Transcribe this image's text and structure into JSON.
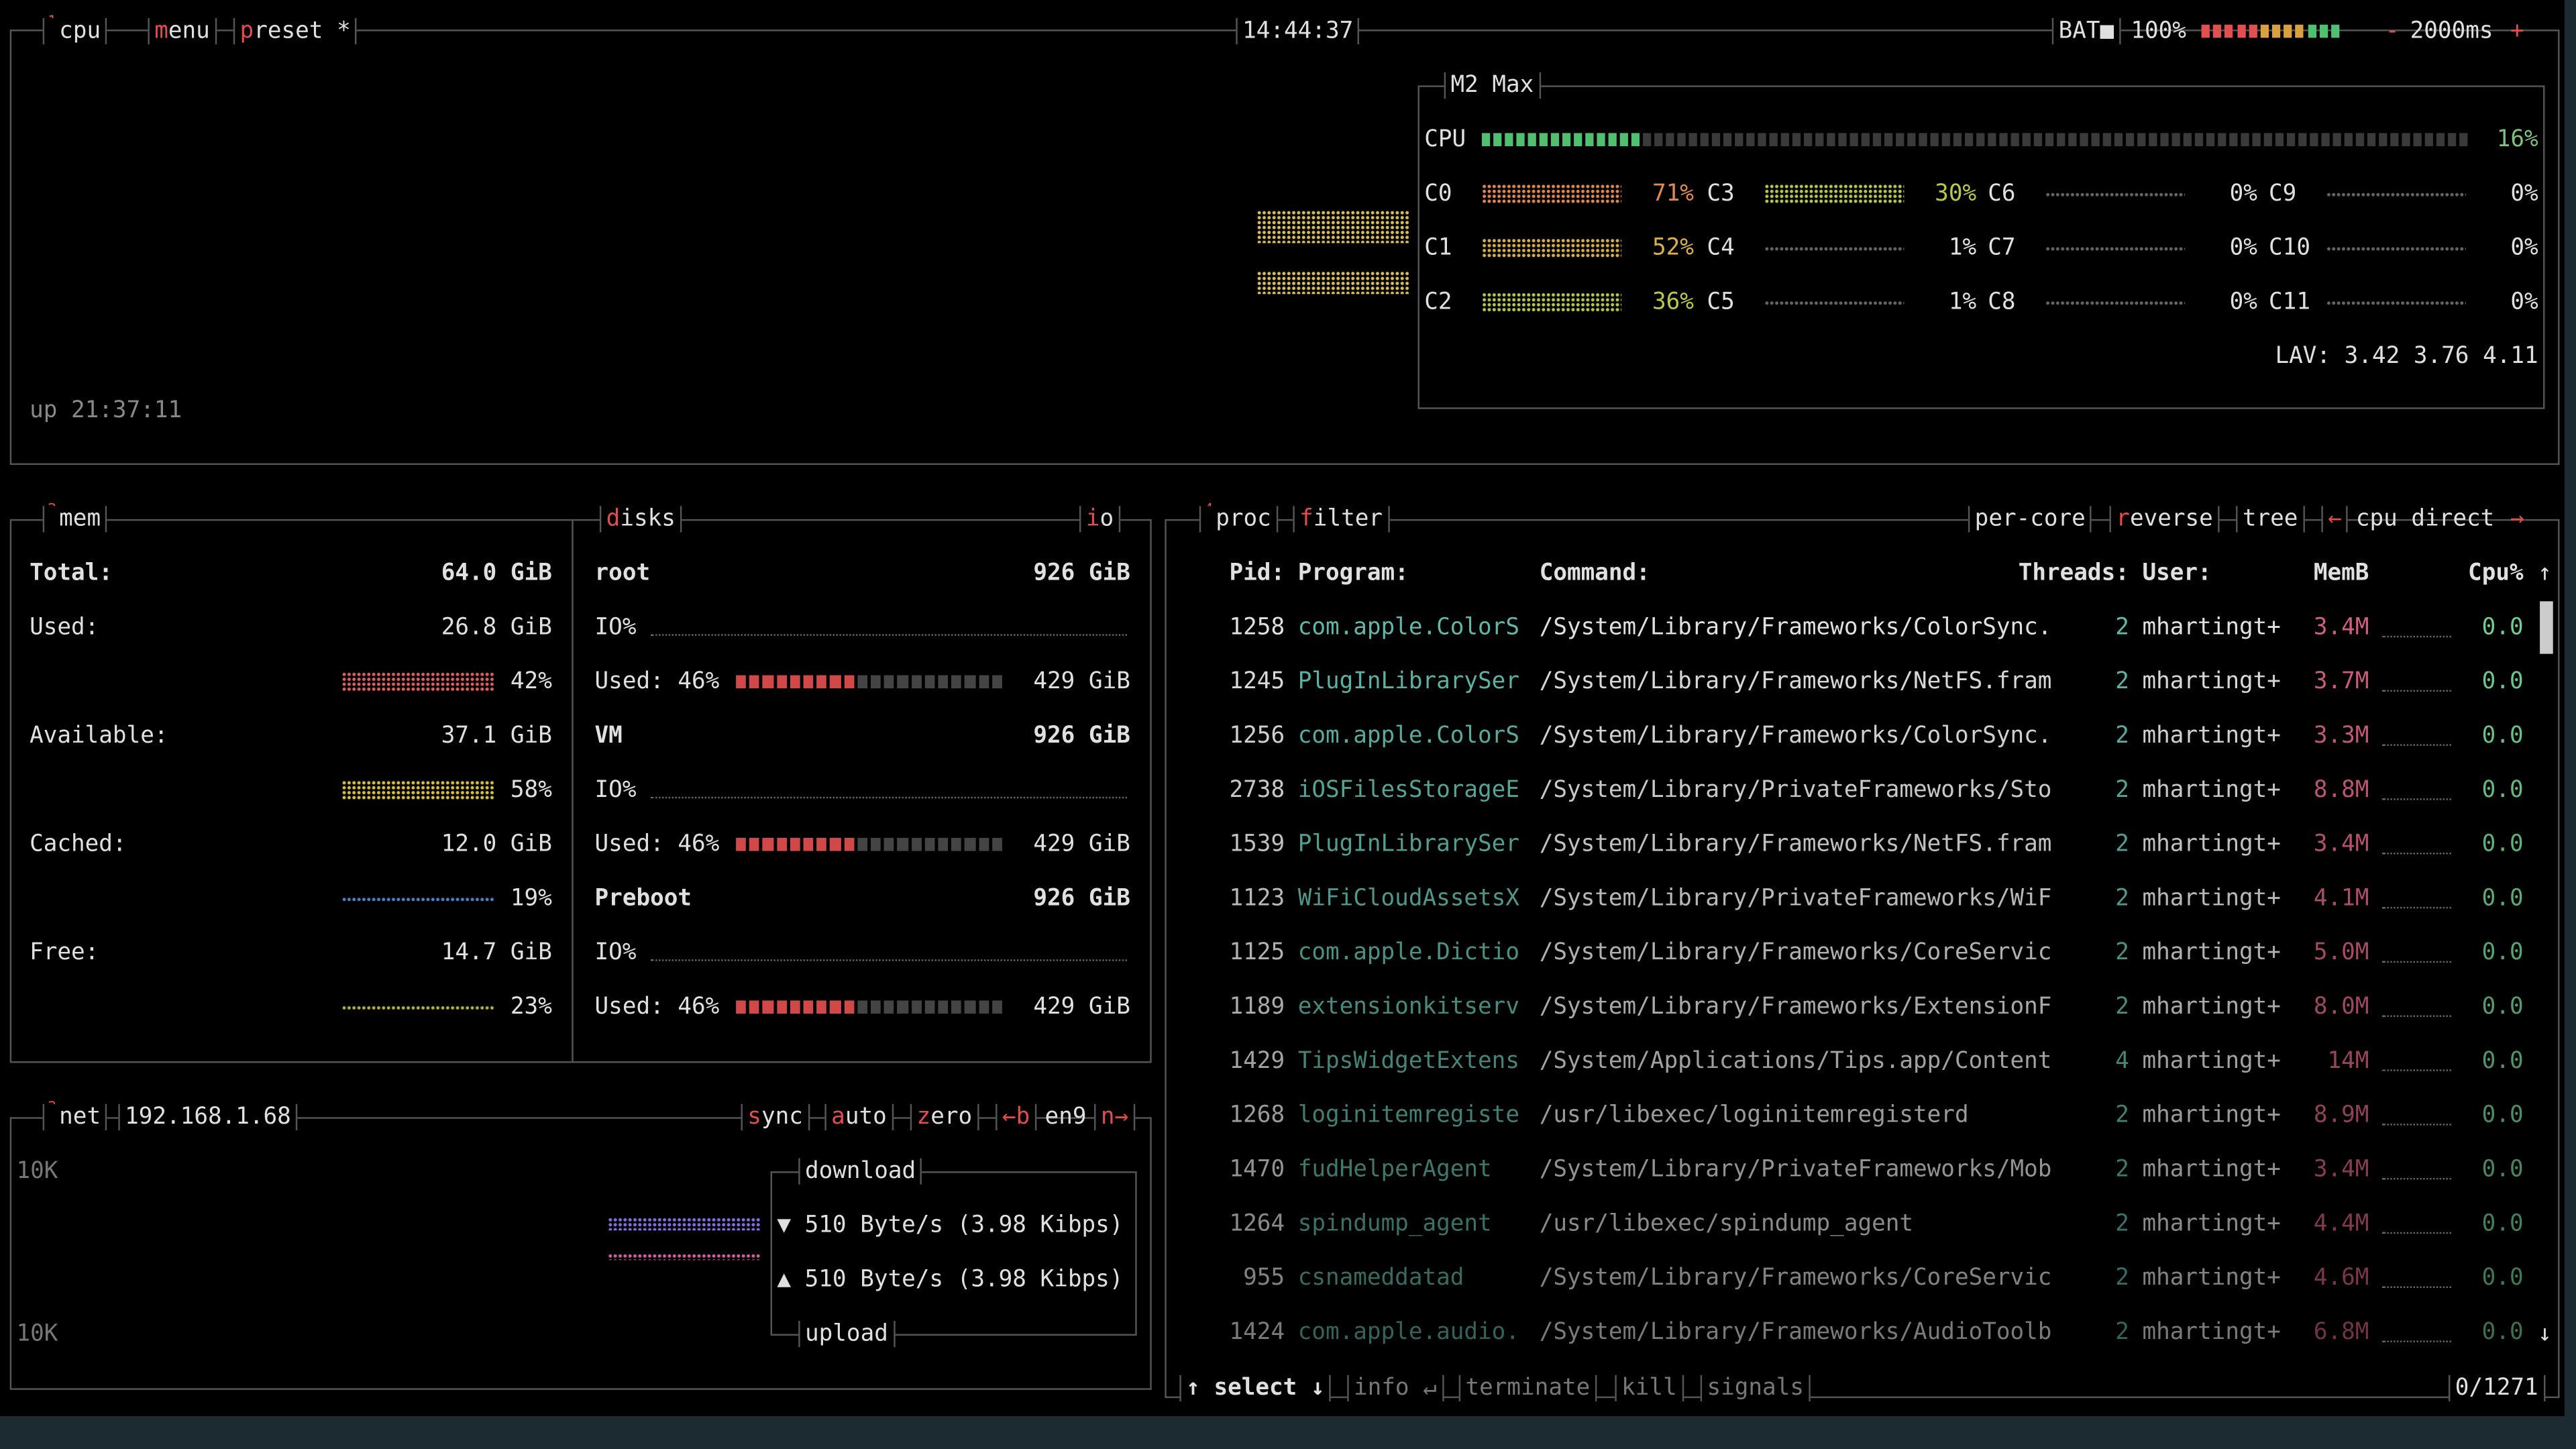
{
  "header": {
    "cpu_num": "1",
    "cpu_tab": "cpu",
    "menu": "menu",
    "preset": "preset *",
    "clock": "14:44:37",
    "battery_label": "BAT■",
    "battery_pct": "100%",
    "interval_minus": "-",
    "interval": "2000ms",
    "interval_plus": "+"
  },
  "cpu": {
    "model": "M2 Max",
    "total_label": "CPU",
    "total_pct": "16%",
    "cores": [
      {
        "name": "C0",
        "pct": "71%"
      },
      {
        "name": "C1",
        "pct": "52%"
      },
      {
        "name": "C2",
        "pct": "36%"
      },
      {
        "name": "C3",
        "pct": "30%"
      },
      {
        "name": "C4",
        "pct": "1%"
      },
      {
        "name": "C5",
        "pct": "1%"
      },
      {
        "name": "C6",
        "pct": "0%"
      },
      {
        "name": "C7",
        "pct": "0%"
      },
      {
        "name": "C8",
        "pct": "0%"
      },
      {
        "name": "C9",
        "pct": "0%"
      },
      {
        "name": "C10",
        "pct": "0%"
      },
      {
        "name": "C11",
        "pct": "0%"
      }
    ],
    "load_avg": "LAV: 3.42 3.76 4.11",
    "uptime": "up 21:37:11"
  },
  "mem": {
    "num": "2",
    "title": "mem",
    "rows": [
      {
        "label": "Total:",
        "value": "64.0 GiB"
      },
      {
        "label": "Used:",
        "value": "26.8 GiB",
        "pct": "42%"
      },
      {
        "label": "Available:",
        "value": "37.1 GiB",
        "pct": "58%"
      },
      {
        "label": "Cached:",
        "value": "12.0 GiB",
        "pct": "19%"
      },
      {
        "label": "Free:",
        "value": "14.7 GiB",
        "pct": "23%"
      }
    ]
  },
  "disks": {
    "title": "disks",
    "io": "io",
    "items": [
      {
        "name": "root",
        "size": "926 GiB",
        "io": "IO%",
        "used": "Used: 46%",
        "used_size": "429 GiB"
      },
      {
        "name": "VM",
        "size": "926 GiB",
        "io": "IO%",
        "used": "Used: 46%",
        "used_size": "429 GiB"
      },
      {
        "name": "Preboot",
        "size": "926 GiB",
        "io": "IO%",
        "used": "Used: 46%",
        "used_size": "429 GiB"
      }
    ]
  },
  "net": {
    "num": "3",
    "title": "net",
    "ip": "192.168.1.68",
    "buttons": [
      "sync",
      "auto",
      "zero"
    ],
    "iface_prev": "←b",
    "iface": "en9",
    "iface_next": "n→",
    "scale_top": "10K",
    "scale_bottom": "10K",
    "download_label": "download",
    "download": "▼ 510 Byte/s (3.98 Kibps)",
    "upload": "▲ 510 Byte/s (3.98 Kibps)",
    "upload_label": "upload"
  },
  "proc": {
    "num": "4",
    "title": "proc",
    "filter": "filter",
    "options": [
      "per-core",
      "reverse",
      "tree"
    ],
    "sort_prev": "←",
    "sort": "cpu direct",
    "sort_next": "→",
    "columns": [
      "Pid:",
      "Program:",
      "Command:",
      "Threads:",
      "User:",
      "MemB",
      "Cpu%"
    ],
    "sort_arrow": "↑",
    "rows": [
      [
        "1258",
        "com.apple.ColorS",
        "/System/Library/Frameworks/ColorSync.",
        "2",
        "mhartingt+",
        "3.4M",
        "0.0"
      ],
      [
        "1245",
        "PlugInLibrarySer",
        "/System/Library/Frameworks/NetFS.fram",
        "2",
        "mhartingt+",
        "3.7M",
        "0.0"
      ],
      [
        "1256",
        "com.apple.ColorS",
        "/System/Library/Frameworks/ColorSync.",
        "2",
        "mhartingt+",
        "3.3M",
        "0.0"
      ],
      [
        "2738",
        "iOSFilesStorageE",
        "/System/Library/PrivateFrameworks/Sto",
        "2",
        "mhartingt+",
        "8.8M",
        "0.0"
      ],
      [
        "1539",
        "PlugInLibrarySer",
        "/System/Library/Frameworks/NetFS.fram",
        "2",
        "mhartingt+",
        "3.4M",
        "0.0"
      ],
      [
        "1123",
        "WiFiCloudAssetsX",
        "/System/Library/PrivateFrameworks/WiF",
        "2",
        "mhartingt+",
        "4.1M",
        "0.0"
      ],
      [
        "1125",
        "com.apple.Dictio",
        "/System/Library/Frameworks/CoreServic",
        "2",
        "mhartingt+",
        "5.0M",
        "0.0"
      ],
      [
        "1189",
        "extensionkitserv",
        "/System/Library/Frameworks/ExtensionF",
        "2",
        "mhartingt+",
        "8.0M",
        "0.0"
      ],
      [
        "1429",
        "TipsWidgetExtens",
        "/System/Applications/Tips.app/Content",
        "4",
        "mhartingt+",
        "14M",
        "0.0"
      ],
      [
        "1268",
        "loginitemregiste",
        "/usr/libexec/loginitemregisterd",
        "2",
        "mhartingt+",
        "8.9M",
        "0.0"
      ],
      [
        "1470",
        "fudHelperAgent",
        "/System/Library/PrivateFrameworks/Mob",
        "2",
        "mhartingt+",
        "3.4M",
        "0.0"
      ],
      [
        "1264",
        "spindump_agent",
        "/usr/libexec/spindump_agent",
        "2",
        "mhartingt+",
        "4.4M",
        "0.0"
      ],
      [
        "955",
        "csnameddatad",
        "/System/Library/Frameworks/CoreServic",
        "2",
        "mhartingt+",
        "4.6M",
        "0.0"
      ],
      [
        "1424",
        "com.apple.audio.",
        "/System/Library/Frameworks/AudioToolb",
        "2",
        "mhartingt+",
        "6.8M",
        "0.0"
      ]
    ],
    "scroll_down": "↓",
    "footer": {
      "select": "↑ select ↓",
      "info": "info ↵",
      "terminate": "terminate",
      "kill": "kill",
      "signals": "signals",
      "count": "0/1271"
    }
  }
}
